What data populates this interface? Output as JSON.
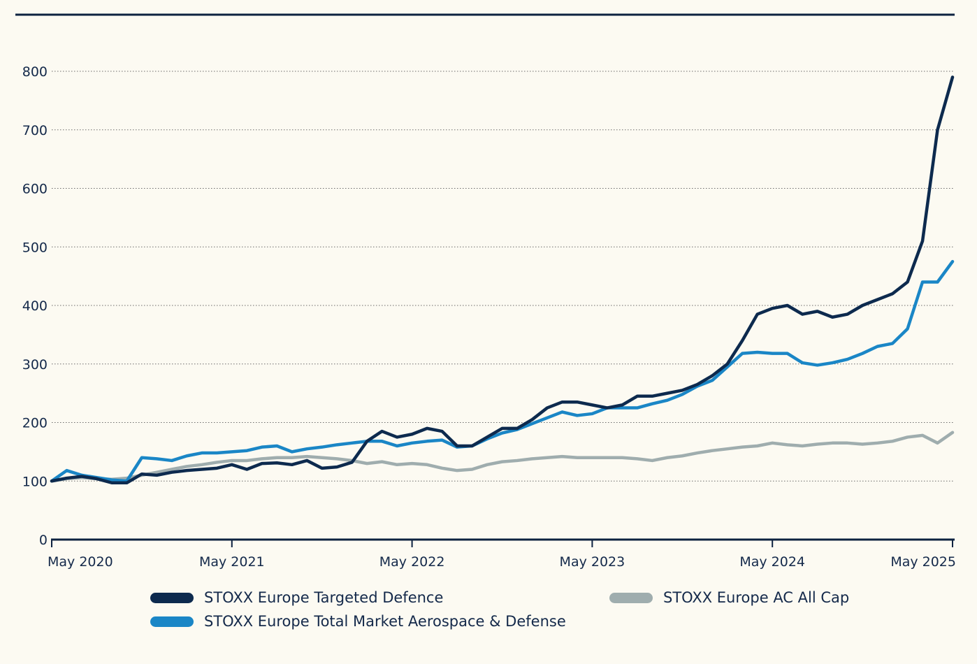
{
  "colors": {
    "background": "#fcfaf2",
    "axis": "#0d2240",
    "grid": "#6b6b6b"
  },
  "chart_data": {
    "type": "line",
    "title": "",
    "xlabel": "",
    "ylabel": "",
    "ylim": [
      0,
      800
    ],
    "yticks": [
      0,
      100,
      200,
      300,
      400,
      500,
      600,
      700,
      800
    ],
    "ytick_labels": [
      "0",
      "100",
      "200",
      "300",
      "400",
      "500",
      "600",
      "700",
      "800"
    ],
    "xlim": [
      "2020-05",
      "2025-05"
    ],
    "xticks": [
      "2020-05",
      "2021-05",
      "2022-05",
      "2023-05",
      "2024-05",
      "2025-05"
    ],
    "xtick_labels": [
      "May 2020",
      "May 2021",
      "May 2022",
      "May 2023",
      "May 2024",
      "May 2025"
    ],
    "grid": "horizontal dotted",
    "legend_position": "bottom",
    "series": [
      {
        "name": "STOXX Europe Targeted Defence",
        "color": "#0d2a4e",
        "x": [
          "2020-05",
          "2020-06",
          "2020-07",
          "2020-08",
          "2020-09",
          "2020-10",
          "2020-11",
          "2020-12",
          "2021-01",
          "2021-02",
          "2021-03",
          "2021-04",
          "2021-05",
          "2021-06",
          "2021-07",
          "2021-08",
          "2021-09",
          "2021-10",
          "2021-11",
          "2021-12",
          "2022-01",
          "2022-02",
          "2022-03",
          "2022-04",
          "2022-05",
          "2022-06",
          "2022-07",
          "2022-08",
          "2022-09",
          "2022-10",
          "2022-11",
          "2022-12",
          "2023-01",
          "2023-02",
          "2023-03",
          "2023-04",
          "2023-05",
          "2023-06",
          "2023-07",
          "2023-08",
          "2023-09",
          "2023-10",
          "2023-11",
          "2023-12",
          "2024-01",
          "2024-02",
          "2024-03",
          "2024-04",
          "2024-05",
          "2024-06",
          "2024-07",
          "2024-08",
          "2024-09",
          "2024-10",
          "2024-11",
          "2024-12",
          "2025-01",
          "2025-02",
          "2025-03",
          "2025-04",
          "2025-05"
        ],
        "values": [
          100,
          105,
          108,
          104,
          97,
          97,
          112,
          110,
          115,
          118,
          120,
          122,
          128,
          120,
          130,
          131,
          128,
          135,
          122,
          124,
          132,
          168,
          185,
          175,
          180,
          190,
          185,
          160,
          160,
          175,
          190,
          190,
          205,
          225,
          235,
          235,
          230,
          225,
          230,
          245,
          245,
          250,
          255,
          265,
          280,
          300,
          340,
          385,
          395,
          400,
          385,
          390,
          380,
          385,
          400,
          410,
          420,
          440,
          510,
          700,
          790
        ]
      },
      {
        "name": "STOXX Europe Total Market Aerospace & Defense",
        "color": "#1a86c6",
        "x": [
          "2020-05",
          "2020-06",
          "2020-07",
          "2020-08",
          "2020-09",
          "2020-10",
          "2020-11",
          "2020-12",
          "2021-01",
          "2021-02",
          "2021-03",
          "2021-04",
          "2021-05",
          "2021-06",
          "2021-07",
          "2021-08",
          "2021-09",
          "2021-10",
          "2021-11",
          "2021-12",
          "2022-01",
          "2022-02",
          "2022-03",
          "2022-04",
          "2022-05",
          "2022-06",
          "2022-07",
          "2022-08",
          "2022-09",
          "2022-10",
          "2022-11",
          "2022-12",
          "2023-01",
          "2023-02",
          "2023-03",
          "2023-04",
          "2023-05",
          "2023-06",
          "2023-07",
          "2023-08",
          "2023-09",
          "2023-10",
          "2023-11",
          "2023-12",
          "2024-01",
          "2024-02",
          "2024-03",
          "2024-04",
          "2024-05",
          "2024-06",
          "2024-07",
          "2024-08",
          "2024-09",
          "2024-10",
          "2024-11",
          "2024-12",
          "2025-01",
          "2025-02",
          "2025-03",
          "2025-04",
          "2025-05"
        ],
        "values": [
          100,
          118,
          110,
          106,
          102,
          100,
          140,
          138,
          135,
          143,
          148,
          148,
          150,
          152,
          158,
          160,
          150,
          155,
          158,
          162,
          165,
          168,
          168,
          160,
          165,
          168,
          170,
          158,
          160,
          172,
          182,
          188,
          198,
          208,
          218,
          212,
          215,
          225,
          225,
          225,
          232,
          238,
          248,
          262,
          272,
          295,
          318,
          320,
          318,
          318,
          302,
          298,
          302,
          308,
          318,
          330,
          335,
          360,
          440,
          440,
          475
        ]
      },
      {
        "name": "STOXX Europe AC All Cap",
        "color": "#9fadae",
        "x": [
          "2020-05",
          "2020-06",
          "2020-07",
          "2020-08",
          "2020-09",
          "2020-10",
          "2020-11",
          "2020-12",
          "2021-01",
          "2021-02",
          "2021-03",
          "2021-04",
          "2021-05",
          "2021-06",
          "2021-07",
          "2021-08",
          "2021-09",
          "2021-10",
          "2021-11",
          "2021-12",
          "2022-01",
          "2022-02",
          "2022-03",
          "2022-04",
          "2022-05",
          "2022-06",
          "2022-07",
          "2022-08",
          "2022-09",
          "2022-10",
          "2022-11",
          "2022-12",
          "2023-01",
          "2023-02",
          "2023-03",
          "2023-04",
          "2023-05",
          "2023-06",
          "2023-07",
          "2023-08",
          "2023-09",
          "2023-10",
          "2023-11",
          "2023-12",
          "2024-01",
          "2024-02",
          "2024-03",
          "2024-04",
          "2024-05",
          "2024-06",
          "2024-07",
          "2024-08",
          "2024-09",
          "2024-10",
          "2024-11",
          "2024-12",
          "2025-01",
          "2025-02",
          "2025-03",
          "2025-04",
          "2025-05"
        ],
        "values": [
          100,
          104,
          106,
          104,
          103,
          105,
          110,
          115,
          120,
          125,
          128,
          132,
          135,
          135,
          138,
          140,
          140,
          142,
          140,
          138,
          135,
          130,
          133,
          128,
          130,
          128,
          122,
          118,
          120,
          128,
          133,
          135,
          138,
          140,
          142,
          140,
          140,
          140,
          140,
          138,
          135,
          140,
          143,
          148,
          152,
          155,
          158,
          160,
          165,
          162,
          160,
          163,
          165,
          165,
          163,
          165,
          168,
          175,
          178,
          165,
          183
        ]
      }
    ]
  }
}
